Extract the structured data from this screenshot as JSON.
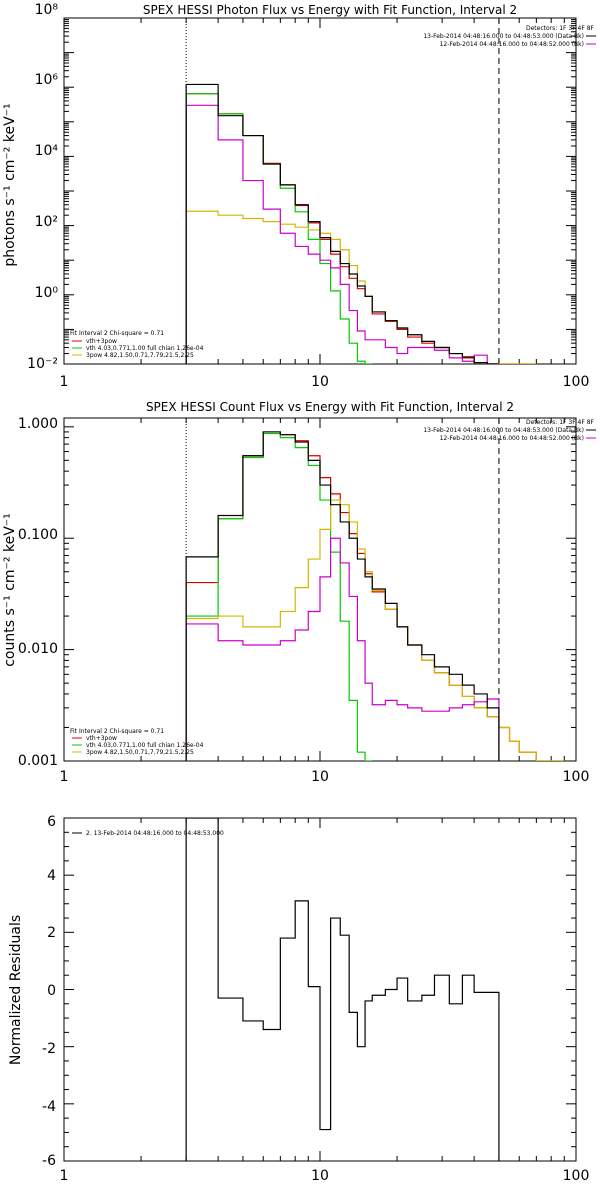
{
  "chart_data": [
    {
      "type": "line",
      "title": "SPEX HESSI Photon Flux vs Energy with Fit Function, Interval 2",
      "ylabel": "photons s⁻¹ cm⁻² keV⁻¹",
      "xlabel": "",
      "xscale": "log",
      "yscale": "log",
      "xlim": [
        1,
        100
      ],
      "ylim": [
        0.01,
        100000000
      ],
      "xticks": [
        "1",
        "10",
        "100"
      ],
      "yticks": [
        {
          "value": 0.01,
          "label": "10⁻²"
        },
        {
          "value": 1,
          "label": "10⁰"
        },
        {
          "value": 100,
          "label": "10²"
        },
        {
          "value": 10000,
          "label": "10⁴"
        },
        {
          "value": 1000000,
          "label": "10⁶"
        },
        {
          "value": 100000000,
          "label": "10⁸"
        }
      ],
      "vlines": [
        {
          "x": 3,
          "style": "dotted",
          "color": "#000000"
        },
        {
          "x": 50,
          "style": "dashed",
          "color": "#000000"
        }
      ],
      "info_lines": [
        {
          "text": "Detectors: 1F 3F 4F 8F",
          "color": "#000000"
        },
        {
          "text": "13-Feb-2014 04:48:16.000 to 04:48:53.000 (Data-Bk)",
          "color": "#000000"
        },
        {
          "text": "12-Feb-2014 04:48:16.000 to 04:48:52.000 (Bk)",
          "color": "#cc00cc"
        }
      ],
      "legend": {
        "placement": "bottom-left",
        "header": "Fit Interval 2   Chi-square = 0.71",
        "entries": [
          {
            "name": "vth+3pow",
            "color": "#dd0000"
          },
          {
            "name": "vth 4.03,0.771,1.00  full chian 1.26e-04",
            "color": "#00cc00"
          },
          {
            "name": "3pow 4.82,1.50,0.71,7.79,21.5,2.25",
            "color": "#d4b800"
          }
        ]
      },
      "series": [
        {
          "name": "Data-Bk",
          "color": "#000000",
          "edges": [
            3,
            4,
            5,
            6,
            7,
            8,
            9,
            10,
            11,
            12,
            13,
            14,
            15,
            16,
            18,
            20,
            22,
            25,
            28,
            32,
            36,
            40,
            45,
            50
          ],
          "values": [
            1200000,
            150000,
            40000,
            6000,
            1500,
            400,
            130,
            45,
            18,
            8,
            4,
            1.8,
            0.9,
            0.32,
            0.18,
            0.11,
            0.07,
            0.045,
            0.03,
            0.02,
            0.016,
            0.011,
            0.01
          ]
        },
        {
          "name": "vth+3pow",
          "color": "#dd0000",
          "edges": [
            3,
            4,
            5,
            6,
            7,
            8,
            9,
            10,
            11,
            12,
            13,
            14,
            15,
            16,
            18,
            20,
            22,
            25,
            28,
            32,
            36,
            40,
            45,
            50,
            55,
            60,
            70
          ],
          "values": [
            650000,
            170000,
            40000,
            6300,
            1500,
            380,
            120,
            40,
            15,
            6.5,
            3,
            1.5,
            0.9,
            0.28,
            0.17,
            0.1,
            0.06,
            0.04,
            0.03,
            0.02,
            0.015,
            0.011,
            0.01,
            0.009,
            0.007,
            0.005
          ]
        },
        {
          "name": "vth",
          "color": "#00cc00",
          "edges": [
            3,
            4,
            5,
            6,
            7,
            8,
            9,
            10,
            11,
            12,
            13,
            14,
            15,
            16
          ],
          "values": [
            650000,
            170000,
            40000,
            6000,
            1200,
            250,
            40,
            8,
            1.3,
            0.2,
            0.04,
            0.012,
            0.005
          ]
        },
        {
          "name": "3pow",
          "color": "#d4b800",
          "edges": [
            3,
            4,
            5,
            6,
            7,
            8,
            9,
            10,
            11,
            12,
            13,
            14,
            15,
            16,
            18,
            20,
            22,
            25,
            28,
            32,
            36,
            40,
            45,
            50,
            55,
            60,
            70
          ],
          "values": [
            260,
            200,
            160,
            130,
            110,
            90,
            75,
            60,
            40,
            20,
            7,
            2.5,
            0.9,
            0.32,
            0.18,
            0.11,
            0.07,
            0.045,
            0.03,
            0.02,
            0.016,
            0.011,
            0.01,
            0.009,
            0.007,
            0.005
          ]
        },
        {
          "name": "Bk",
          "color": "#cc00cc",
          "edges": [
            3,
            4,
            5,
            6,
            7,
            8,
            9,
            10,
            11,
            12,
            13,
            14,
            15,
            16,
            18,
            20,
            22,
            25,
            28,
            32,
            36,
            40,
            45,
            50
          ],
          "values": [
            300000,
            30000,
            2000,
            300,
            60,
            25,
            15,
            10,
            6,
            2,
            0.35,
            0.09,
            0.05,
            0.05,
            0.03,
            0.02,
            0.03,
            0.03,
            0.025,
            0.015,
            0.012,
            0.018,
            0.008
          ]
        }
      ]
    },
    {
      "type": "line",
      "title": "SPEX HESSI Count Flux vs Energy with Fit Function, Interval 2",
      "ylabel": "counts s⁻¹ cm⁻² keV⁻¹",
      "xlabel": "",
      "xscale": "log",
      "yscale": "log",
      "xlim": [
        1,
        100
      ],
      "ylim": [
        0.001,
        1.2
      ],
      "xticks": [
        "1",
        "10",
        "100"
      ],
      "yticks": [
        {
          "value": 0.001,
          "label": "0.001"
        },
        {
          "value": 0.01,
          "label": "0.010"
        },
        {
          "value": 0.1,
          "label": "0.100"
        },
        {
          "value": 1,
          "label": "1.000"
        }
      ],
      "vlines": [
        {
          "x": 3,
          "style": "dotted",
          "color": "#000000"
        },
        {
          "x": 50,
          "style": "dashed",
          "color": "#000000"
        }
      ],
      "info_lines": [
        {
          "text": "Detectors: 1F 3F 4F 8F",
          "color": "#000000"
        },
        {
          "text": "13-Feb-2014 04:48:16.000 to 04:48:53.000 (Data-Bk)",
          "color": "#000000"
        },
        {
          "text": "12-Feb-2014 04:48:16.000 to 04:48:52.000 (Bk)",
          "color": "#cc00cc"
        }
      ],
      "legend": {
        "placement": "bottom-left",
        "header": "Fit Interval 2   Chi-square = 0.71",
        "entries": [
          {
            "name": "vth+3pow",
            "color": "#dd0000"
          },
          {
            "name": "vth 4.03,0.771,1.00  full chian 1.26e-04",
            "color": "#00cc00"
          },
          {
            "name": "3pow 4.82,1.50,0.71,7.79,21.5,2.25",
            "color": "#d4b800"
          }
        ]
      },
      "series": [
        {
          "name": "Data-Bk",
          "color": "#000000",
          "edges": [
            3,
            4,
            5,
            6,
            7,
            8,
            9,
            10,
            11,
            12,
            13,
            14,
            15,
            16,
            18,
            20,
            22,
            25,
            28,
            32,
            36,
            40,
            45,
            50
          ],
          "values": [
            0.068,
            0.16,
            0.55,
            0.9,
            0.85,
            0.73,
            0.5,
            0.3,
            0.2,
            0.14,
            0.1,
            0.065,
            0.045,
            0.035,
            0.026,
            0.016,
            0.011,
            0.009,
            0.007,
            0.006,
            0.0048,
            0.004,
            0.003
          ]
        },
        {
          "name": "vth+3pow",
          "color": "#dd0000",
          "edges": [
            3,
            4,
            5,
            6,
            7,
            8,
            9,
            10,
            11,
            12,
            13,
            14,
            15,
            16,
            18,
            20,
            22,
            25,
            28,
            32,
            36,
            40,
            45,
            50,
            55,
            60,
            70,
            80,
            90
          ],
          "values": [
            0.04,
            0.15,
            0.55,
            0.9,
            0.85,
            0.75,
            0.55,
            0.35,
            0.25,
            0.17,
            0.11,
            0.073,
            0.048,
            0.033,
            0.023,
            0.016,
            0.011,
            0.008,
            0.0062,
            0.0048,
            0.0038,
            0.003,
            0.0025,
            0.002,
            0.0015,
            0.0012,
            0.001,
            0.0009
          ]
        },
        {
          "name": "vth",
          "color": "#00cc00",
          "edges": [
            3,
            4,
            5,
            6,
            7,
            8,
            9,
            10,
            11,
            12,
            13,
            14,
            15,
            16
          ],
          "values": [
            0.02,
            0.15,
            0.53,
            0.87,
            0.8,
            0.65,
            0.45,
            0.22,
            0.075,
            0.018,
            0.0035,
            0.0012,
            0.0008
          ]
        },
        {
          "name": "3pow",
          "color": "#d4b800",
          "edges": [
            3,
            4,
            5,
            6,
            7,
            8,
            9,
            10,
            11,
            12,
            13,
            14,
            15,
            16,
            18,
            20,
            22,
            25,
            28,
            32,
            36,
            40,
            45,
            50,
            55,
            60,
            70,
            80,
            90
          ],
          "values": [
            0.019,
            0.02,
            0.016,
            0.016,
            0.022,
            0.036,
            0.065,
            0.12,
            0.22,
            0.2,
            0.14,
            0.08,
            0.05,
            0.034,
            0.023,
            0.016,
            0.011,
            0.008,
            0.0062,
            0.0048,
            0.0038,
            0.003,
            0.0025,
            0.002,
            0.0015,
            0.0012,
            0.001,
            0.0009
          ]
        },
        {
          "name": "Bk",
          "color": "#cc00cc",
          "edges": [
            3,
            4,
            5,
            6,
            7,
            8,
            9,
            10,
            11,
            12,
            13,
            14,
            15,
            16,
            18,
            20,
            22,
            25,
            28,
            32,
            36,
            40,
            45,
            50
          ],
          "values": [
            0.017,
            0.012,
            0.011,
            0.011,
            0.012,
            0.015,
            0.022,
            0.045,
            0.1,
            0.06,
            0.03,
            0.012,
            0.005,
            0.0032,
            0.0035,
            0.0032,
            0.003,
            0.0028,
            0.0028,
            0.003,
            0.0032,
            0.0034,
            0.0036
          ]
        }
      ]
    },
    {
      "type": "line",
      "title": "",
      "ylabel": "Normalized Residuals",
      "xlabel": "",
      "xscale": "log",
      "yscale": "linear",
      "xlim": [
        1,
        100
      ],
      "ylim": [
        -6,
        6
      ],
      "xticks": [
        "1",
        "10",
        "100"
      ],
      "yticks": [
        {
          "value": -6,
          "label": "-6"
        },
        {
          "value": -4,
          "label": "-4"
        },
        {
          "value": -2,
          "label": "-2"
        },
        {
          "value": 0,
          "label": "0"
        },
        {
          "value": 2,
          "label": "2"
        },
        {
          "value": 4,
          "label": "4"
        },
        {
          "value": 6,
          "label": "6"
        }
      ],
      "legend": {
        "placement": "top-left",
        "entries": [
          {
            "name": "2. 13-Feb-2014 04:48:16.000 to 04:48:53.000",
            "color": "#000000"
          }
        ]
      },
      "series": [
        {
          "name": "residuals",
          "color": "#000000",
          "edges": [
            3,
            4,
            5,
            6,
            7,
            8,
            9,
            10,
            11,
            12,
            13,
            14,
            15,
            16,
            18,
            20,
            22,
            25,
            28,
            32,
            36,
            40,
            45,
            50
          ],
          "values": [
            6.5,
            -0.3,
            -1.1,
            -1.4,
            1.8,
            3.1,
            0.1,
            -4.9,
            2.5,
            1.9,
            -0.8,
            -2.0,
            -0.4,
            -0.2,
            0.0,
            0.4,
            -0.4,
            -0.2,
            0.5,
            -0.5,
            0.5,
            -0.1,
            -0.1
          ]
        }
      ]
    }
  ]
}
